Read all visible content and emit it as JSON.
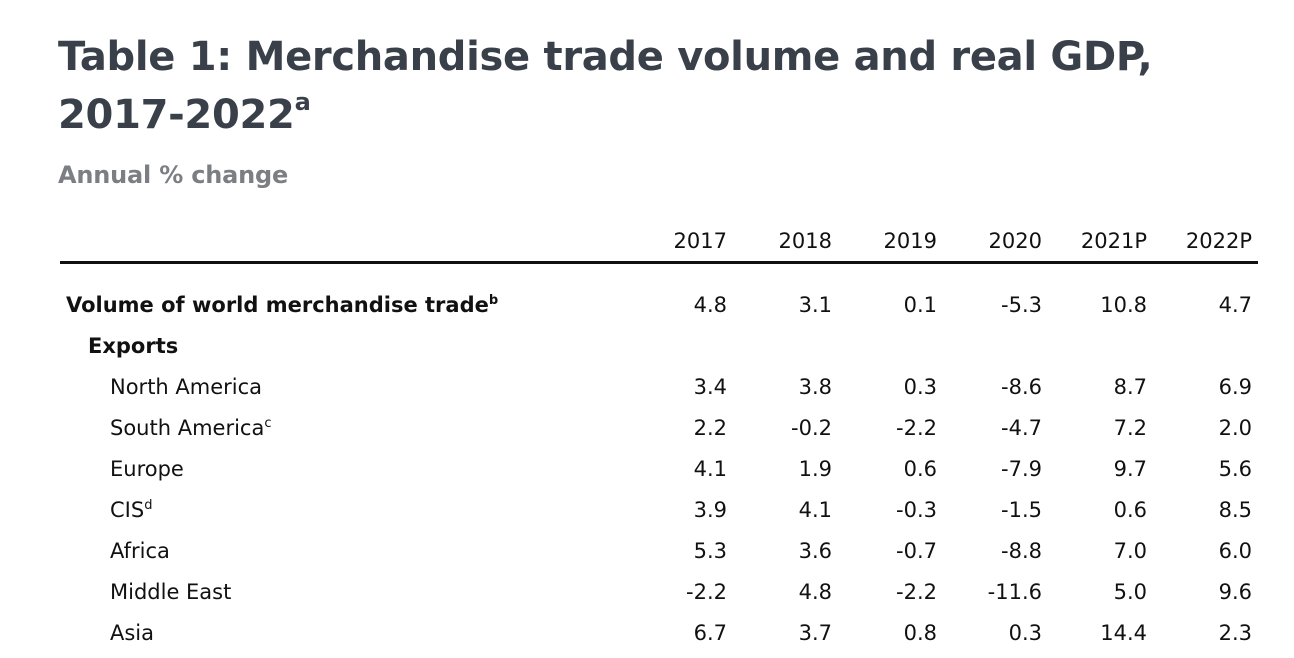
{
  "title": {
    "text": "Table 1: Merchandise trade volume and real GDP, 2017-2022",
    "footnote": "a"
  },
  "subtitle": "Annual % change",
  "table": {
    "columns": [
      "2017",
      "2018",
      "2019",
      "2020",
      "2021P",
      "2022P"
    ],
    "rows": [
      {
        "label": "Volume of world merchandise trade",
        "footnote": "b",
        "level": 0,
        "values": [
          "4.8",
          "3.1",
          "0.1",
          "-5.3",
          "10.8",
          "4.7"
        ]
      },
      {
        "label": "Exports",
        "footnote": "",
        "level": 1,
        "values": [
          "",
          "",
          "",
          "",
          "",
          ""
        ]
      },
      {
        "label": "North America",
        "footnote": "",
        "level": 2,
        "values": [
          "3.4",
          "3.8",
          "0.3",
          "-8.6",
          "8.7",
          "6.9"
        ]
      },
      {
        "label": "South America",
        "footnote": "c",
        "level": 2,
        "values": [
          "2.2",
          "-0.2",
          "-2.2",
          "-4.7",
          "7.2",
          "2.0"
        ]
      },
      {
        "label": "Europe",
        "footnote": "",
        "level": 2,
        "values": [
          "4.1",
          "1.9",
          "0.6",
          "-7.9",
          "9.7",
          "5.6"
        ]
      },
      {
        "label": "CIS",
        "footnote": "d",
        "level": 2,
        "values": [
          "3.9",
          "4.1",
          "-0.3",
          "-1.5",
          "0.6",
          "8.5"
        ]
      },
      {
        "label": "Africa",
        "footnote": "",
        "level": 2,
        "values": [
          "5.3",
          "3.6",
          "-0.7",
          "-8.8",
          "7.0",
          "6.0"
        ]
      },
      {
        "label": "Middle East",
        "footnote": "",
        "level": 2,
        "values": [
          "-2.2",
          "4.8",
          "-2.2",
          "-11.6",
          "5.0",
          "9.6"
        ]
      },
      {
        "label": "Asia",
        "footnote": "",
        "level": 2,
        "values": [
          "6.7",
          "3.7",
          "0.8",
          "0.3",
          "14.4",
          "2.3"
        ]
      }
    ]
  }
}
